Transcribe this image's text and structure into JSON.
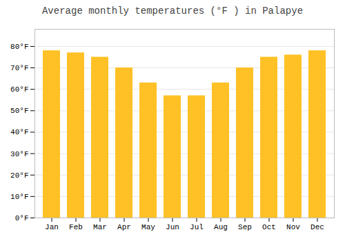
{
  "chart_data": {
    "type": "bar",
    "title": "Average monthly temperatures (°F ) in Palapye",
    "categories": [
      "Jan",
      "Feb",
      "Mar",
      "Apr",
      "May",
      "Jun",
      "Jul",
      "Aug",
      "Sep",
      "Oct",
      "Nov",
      "Dec"
    ],
    "values": [
      78,
      77,
      75,
      70,
      63,
      57,
      57,
      63,
      70,
      75,
      76,
      78
    ],
    "color": "#FFC125",
    "ylim": [
      0,
      88
    ],
    "yticks": [
      {
        "value": 0,
        "label": "0°F"
      },
      {
        "value": 10,
        "label": "10°F"
      },
      {
        "value": 20,
        "label": "20°F"
      },
      {
        "value": 30,
        "label": "30°F"
      },
      {
        "value": 40,
        "label": "40°F"
      },
      {
        "value": 50,
        "label": "50°F"
      },
      {
        "value": 60,
        "label": "60°F"
      },
      {
        "value": 70,
        "label": "70°F"
      },
      {
        "value": 80,
        "label": "80°F"
      }
    ],
    "grid": true
  }
}
